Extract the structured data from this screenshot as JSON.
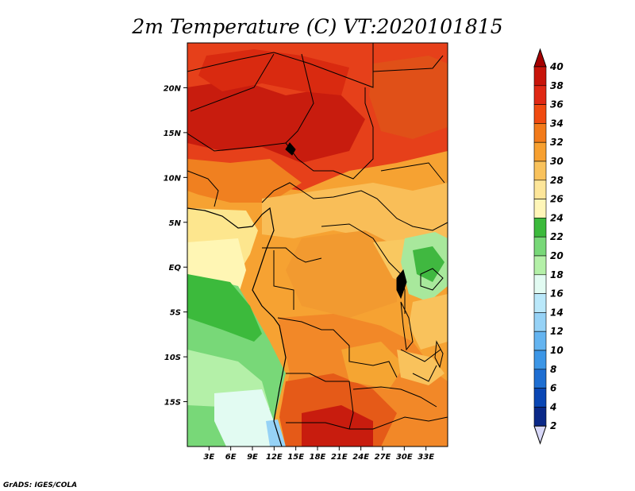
{
  "title": "2m Temperature (C) VT:2020101815",
  "credit": "GrADS: IGES/COLA",
  "map_extent": {
    "lon": [
      0,
      36
    ],
    "lat": [
      -20,
      25
    ]
  },
  "lon_ticks": [
    "3E",
    "6E",
    "9E",
    "12E",
    "15E",
    "18E",
    "21E",
    "24E",
    "27E",
    "30E",
    "33E"
  ],
  "lat_ticks": [
    "20N",
    "15N",
    "10N",
    "5N",
    "EQ",
    "5S",
    "10S",
    "15S"
  ],
  "colorbar": {
    "levels": [
      "40",
      "38",
      "36",
      "34",
      "32",
      "30",
      "28",
      "26",
      "24",
      "22",
      "20",
      "18",
      "16",
      "14",
      "12",
      "10",
      "8",
      "6",
      "4",
      "2"
    ],
    "colors": [
      "#a50000",
      "#c8140a",
      "#e02814",
      "#f04a10",
      "#f27a1a",
      "#f7a030",
      "#f9c25c",
      "#fde69a",
      "#fff6b8",
      "#3cba3c",
      "#78d878",
      "#b4f0a8",
      "#e2fbf2",
      "#bae8fa",
      "#96d2f6",
      "#64b4f0",
      "#3c96e6",
      "#1e6ed2",
      "#0a46b4",
      "#0a2888"
    ]
  }
}
